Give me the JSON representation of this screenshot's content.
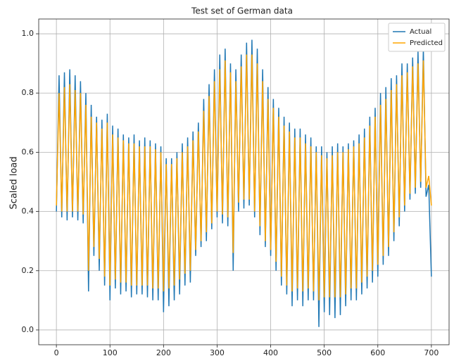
{
  "chart_data": {
    "type": "line",
    "title": "Test set of German data",
    "y_label": "Scaled load",
    "x": [
      0,
      5,
      10,
      15,
      20,
      25,
      30,
      35,
      40,
      45,
      50,
      55,
      60,
      65,
      70,
      75,
      80,
      85,
      90,
      95,
      100,
      105,
      110,
      115,
      120,
      125,
      130,
      135,
      140,
      145,
      150,
      155,
      160,
      165,
      170,
      175,
      180,
      185,
      190,
      195,
      200,
      205,
      210,
      215,
      220,
      225,
      230,
      235,
      240,
      245,
      250,
      255,
      260,
      265,
      270,
      275,
      280,
      285,
      290,
      295,
      300,
      305,
      310,
      315,
      320,
      325,
      330,
      335,
      340,
      345,
      350,
      355,
      360,
      365,
      370,
      375,
      380,
      385,
      390,
      395,
      400,
      405,
      410,
      415,
      420,
      425,
      430,
      435,
      440,
      445,
      450,
      455,
      460,
      465,
      470,
      475,
      480,
      485,
      490,
      495,
      500,
      505,
      510,
      515,
      520,
      525,
      530,
      535,
      540,
      545,
      550,
      555,
      560,
      565,
      570,
      575,
      580,
      585,
      590,
      595,
      600,
      605,
      610,
      615,
      620,
      625,
      630,
      635,
      640,
      645,
      650,
      655,
      660,
      665,
      670,
      675,
      680,
      685,
      690,
      695,
      700
    ],
    "series": [
      {
        "name": "Actual",
        "color": "#1f77b4",
        "values": [
          0.4,
          0.86,
          0.38,
          0.87,
          0.37,
          0.88,
          0.38,
          0.86,
          0.37,
          0.84,
          0.36,
          0.8,
          0.13,
          0.76,
          0.25,
          0.72,
          0.2,
          0.71,
          0.15,
          0.73,
          0.1,
          0.69,
          0.14,
          0.68,
          0.12,
          0.66,
          0.13,
          0.65,
          0.11,
          0.66,
          0.12,
          0.64,
          0.12,
          0.65,
          0.11,
          0.64,
          0.1,
          0.63,
          0.1,
          0.62,
          0.06,
          0.58,
          0.08,
          0.58,
          0.1,
          0.6,
          0.12,
          0.63,
          0.15,
          0.65,
          0.16,
          0.67,
          0.25,
          0.7,
          0.28,
          0.78,
          0.3,
          0.83,
          0.34,
          0.88,
          0.38,
          0.93,
          0.36,
          0.95,
          0.35,
          0.9,
          0.2,
          0.88,
          0.4,
          0.93,
          0.41,
          0.97,
          0.42,
          0.98,
          0.38,
          0.95,
          0.32,
          0.88,
          0.28,
          0.82,
          0.25,
          0.78,
          0.2,
          0.75,
          0.15,
          0.72,
          0.12,
          0.7,
          0.08,
          0.68,
          0.1,
          0.68,
          0.08,
          0.66,
          0.1,
          0.65,
          0.1,
          0.62,
          0.01,
          0.62,
          0.06,
          0.6,
          0.05,
          0.62,
          0.04,
          0.63,
          0.05,
          0.62,
          0.08,
          0.63,
          0.1,
          0.64,
          0.1,
          0.66,
          0.12,
          0.68,
          0.14,
          0.72,
          0.16,
          0.75,
          0.18,
          0.8,
          0.22,
          0.82,
          0.25,
          0.85,
          0.3,
          0.86,
          0.35,
          0.9,
          0.4,
          0.9,
          0.44,
          0.92,
          0.46,
          0.94,
          0.48,
          0.95,
          0.45,
          0.49,
          0.18
        ]
      },
      {
        "name": "Predicted",
        "color": "#ffa500",
        "values": [
          0.42,
          0.8,
          0.4,
          0.82,
          0.4,
          0.83,
          0.4,
          0.81,
          0.4,
          0.8,
          0.39,
          0.76,
          0.2,
          0.72,
          0.28,
          0.7,
          0.24,
          0.68,
          0.18,
          0.7,
          0.15,
          0.66,
          0.17,
          0.65,
          0.16,
          0.64,
          0.16,
          0.63,
          0.15,
          0.63,
          0.15,
          0.62,
          0.15,
          0.62,
          0.15,
          0.62,
          0.14,
          0.61,
          0.14,
          0.6,
          0.13,
          0.56,
          0.14,
          0.56,
          0.15,
          0.58,
          0.17,
          0.6,
          0.19,
          0.62,
          0.2,
          0.64,
          0.27,
          0.67,
          0.3,
          0.74,
          0.33,
          0.79,
          0.36,
          0.84,
          0.4,
          0.88,
          0.39,
          0.91,
          0.38,
          0.87,
          0.26,
          0.84,
          0.43,
          0.89,
          0.44,
          0.93,
          0.44,
          0.93,
          0.4,
          0.9,
          0.35,
          0.84,
          0.3,
          0.78,
          0.27,
          0.75,
          0.23,
          0.72,
          0.18,
          0.69,
          0.15,
          0.67,
          0.13,
          0.65,
          0.14,
          0.65,
          0.13,
          0.63,
          0.14,
          0.62,
          0.13,
          0.6,
          0.1,
          0.59,
          0.11,
          0.58,
          0.11,
          0.59,
          0.11,
          0.6,
          0.11,
          0.6,
          0.12,
          0.61,
          0.14,
          0.62,
          0.14,
          0.63,
          0.16,
          0.65,
          0.18,
          0.69,
          0.2,
          0.72,
          0.22,
          0.76,
          0.25,
          0.78,
          0.28,
          0.81,
          0.33,
          0.83,
          0.38,
          0.86,
          0.42,
          0.87,
          0.46,
          0.89,
          0.48,
          0.9,
          0.5,
          0.91,
          0.48,
          0.52,
          0.42
        ]
      }
    ],
    "xlim": [
      -33,
      733
    ],
    "xticks": [
      0,
      100,
      200,
      300,
      400,
      500,
      600,
      700
    ],
    "ylim": [
      -0.05,
      1.05
    ],
    "yticks": [
      {
        "value": 0,
        "label": "0.0"
      },
      0.2,
      0.4,
      0.6,
      0.8,
      {
        "value": 1,
        "label": "1.0"
      }
    ],
    "grid": true,
    "legend": "upper right"
  }
}
